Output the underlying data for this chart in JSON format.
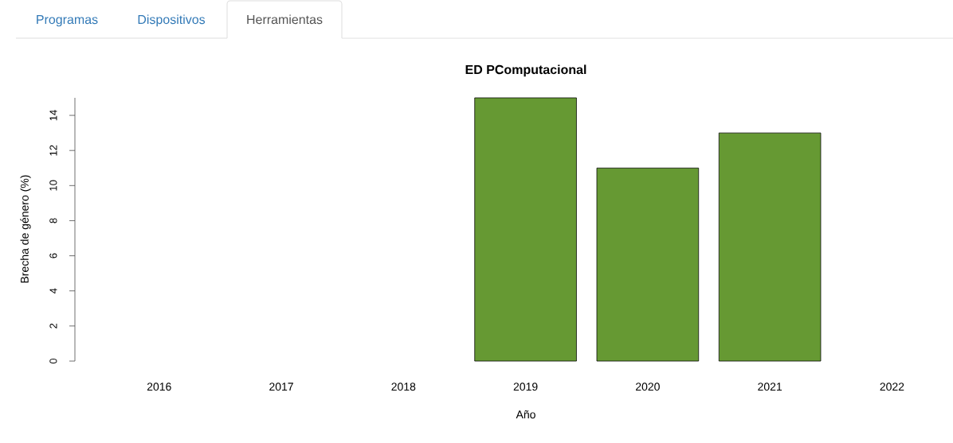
{
  "chart_data": {
    "type": "bar",
    "title": "ED PComputacional",
    "xlabel": "Año",
    "ylabel": "Brecha de género (%)",
    "categories": [
      "2016",
      "2017",
      "2018",
      "2019",
      "2020",
      "2021",
      "2022"
    ],
    "values": [
      null,
      null,
      null,
      15,
      11,
      13,
      null
    ],
    "color": "#669933",
    "ylim": [
      0,
      15
    ],
    "yticks": [
      0,
      2,
      4,
      6,
      8,
      10,
      12,
      14
    ],
    "annotations": [
      "Programas",
      "Dispositivos",
      "Herramientas"
    ]
  }
}
